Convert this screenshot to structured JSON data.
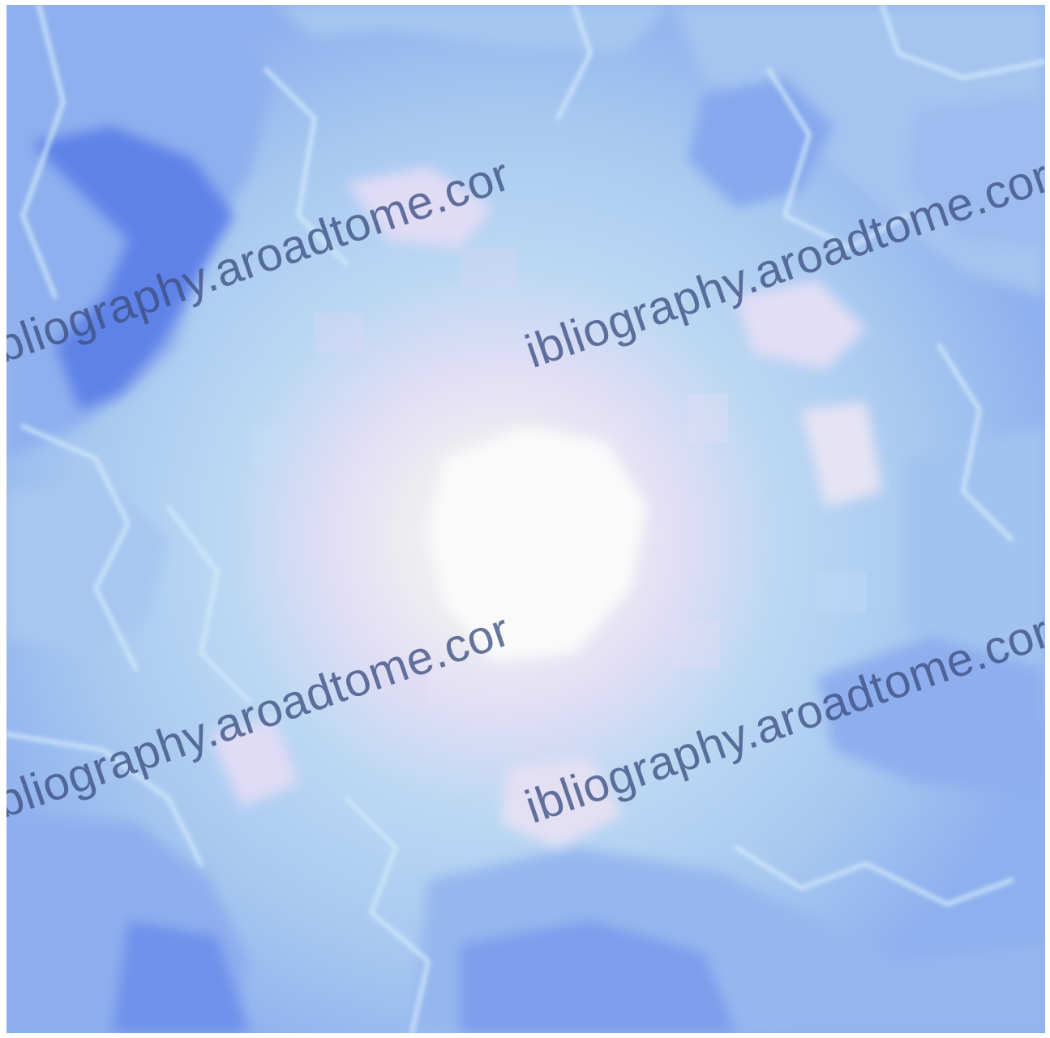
{
  "watermark": {
    "text": "ibliography.aroadtome.cor"
  },
  "palette": {
    "center": "#f8f8fa",
    "inner": "#e8e8ee",
    "lavender": "#e2def6",
    "light_blue": "#b8d6f2",
    "sky": "#c6e2f8",
    "mid_blue": "#9ec0f0",
    "deep_blue": "#7a9ef0",
    "darkest_blue": "#5a7ee6"
  }
}
